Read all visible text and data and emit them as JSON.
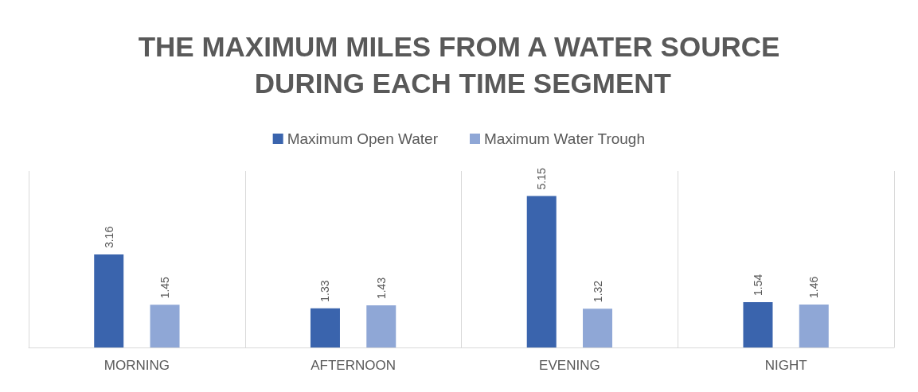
{
  "chart_data": {
    "type": "bar",
    "title": "THE MAXIMUM MILES FROM A WATER SOURCE DURING EACH TIME SEGMENT",
    "categories": [
      "MORNING",
      "AFTERNOON",
      "EVENING",
      "NIGHT"
    ],
    "series": [
      {
        "name": "Maximum Open Water",
        "color": "#3a64ad",
        "values": [
          3.16,
          1.33,
          5.15,
          1.54
        ]
      },
      {
        "name": "Maximum Water Trough",
        "color": "#8fa7d6",
        "values": [
          1.45,
          1.43,
          1.32,
          1.46
        ]
      }
    ],
    "data_labels": true,
    "grid": "x",
    "legend": "top",
    "tick_labels": "x"
  }
}
